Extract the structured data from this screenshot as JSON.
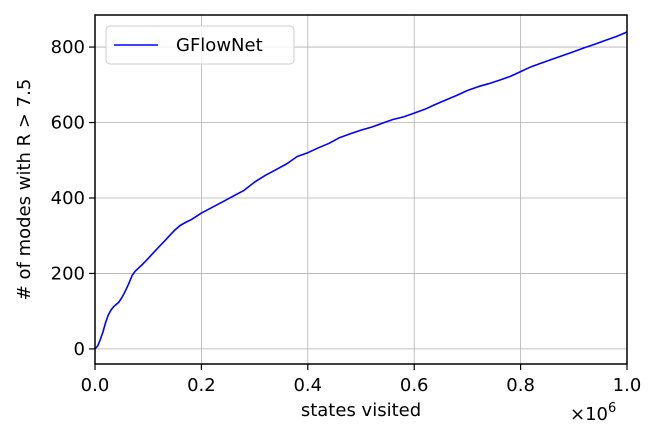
{
  "chart_data": {
    "type": "line",
    "xlabel": "states visited",
    "ylabel": "# of modes with R > 7.5",
    "x_offset_label": "×10",
    "x_offset_exponent": "6",
    "xlim": [
      0.0,
      1.0
    ],
    "ylim": [
      -40,
      885
    ],
    "x_ticks": [
      0.0,
      0.2,
      0.4,
      0.6,
      0.8,
      1.0
    ],
    "x_tick_labels": [
      "0.0",
      "0.2",
      "0.4",
      "0.6",
      "0.8",
      "1.0"
    ],
    "y_ticks": [
      0,
      200,
      400,
      600,
      800
    ],
    "y_tick_labels": [
      "0",
      "200",
      "400",
      "600",
      "800"
    ],
    "grid": true,
    "legend": {
      "position": "top-left",
      "entries": [
        "GFlowNet"
      ]
    },
    "series": [
      {
        "name": "GFlowNet",
        "color": "#0000ff",
        "x": [
          0.0,
          0.005,
          0.01,
          0.015,
          0.02,
          0.025,
          0.03,
          0.035,
          0.04,
          0.045,
          0.05,
          0.055,
          0.06,
          0.065,
          0.07,
          0.075,
          0.08,
          0.09,
          0.1,
          0.11,
          0.12,
          0.13,
          0.14,
          0.15,
          0.16,
          0.17,
          0.18,
          0.2,
          0.22,
          0.24,
          0.26,
          0.28,
          0.3,
          0.32,
          0.34,
          0.36,
          0.38,
          0.4,
          0.42,
          0.44,
          0.46,
          0.48,
          0.5,
          0.52,
          0.54,
          0.56,
          0.58,
          0.6,
          0.62,
          0.64,
          0.66,
          0.68,
          0.7,
          0.72,
          0.74,
          0.76,
          0.78,
          0.8,
          0.82,
          0.84,
          0.86,
          0.88,
          0.9,
          0.92,
          0.94,
          0.96,
          0.98,
          1.0
        ],
        "y": [
          0,
          8,
          25,
          45,
          70,
          90,
          103,
          112,
          118,
          124,
          135,
          148,
          162,
          178,
          195,
          205,
          212,
          225,
          240,
          255,
          270,
          285,
          300,
          315,
          327,
          335,
          342,
          360,
          375,
          390,
          405,
          420,
          442,
          460,
          475,
          490,
          510,
          520,
          533,
          545,
          560,
          570,
          580,
          588,
          598,
          608,
          615,
          625,
          635,
          648,
          660,
          672,
          685,
          695,
          703,
          712,
          722,
          735,
          748,
          758,
          768,
          778,
          788,
          798,
          808,
          818,
          828,
          840
        ]
      }
    ]
  }
}
